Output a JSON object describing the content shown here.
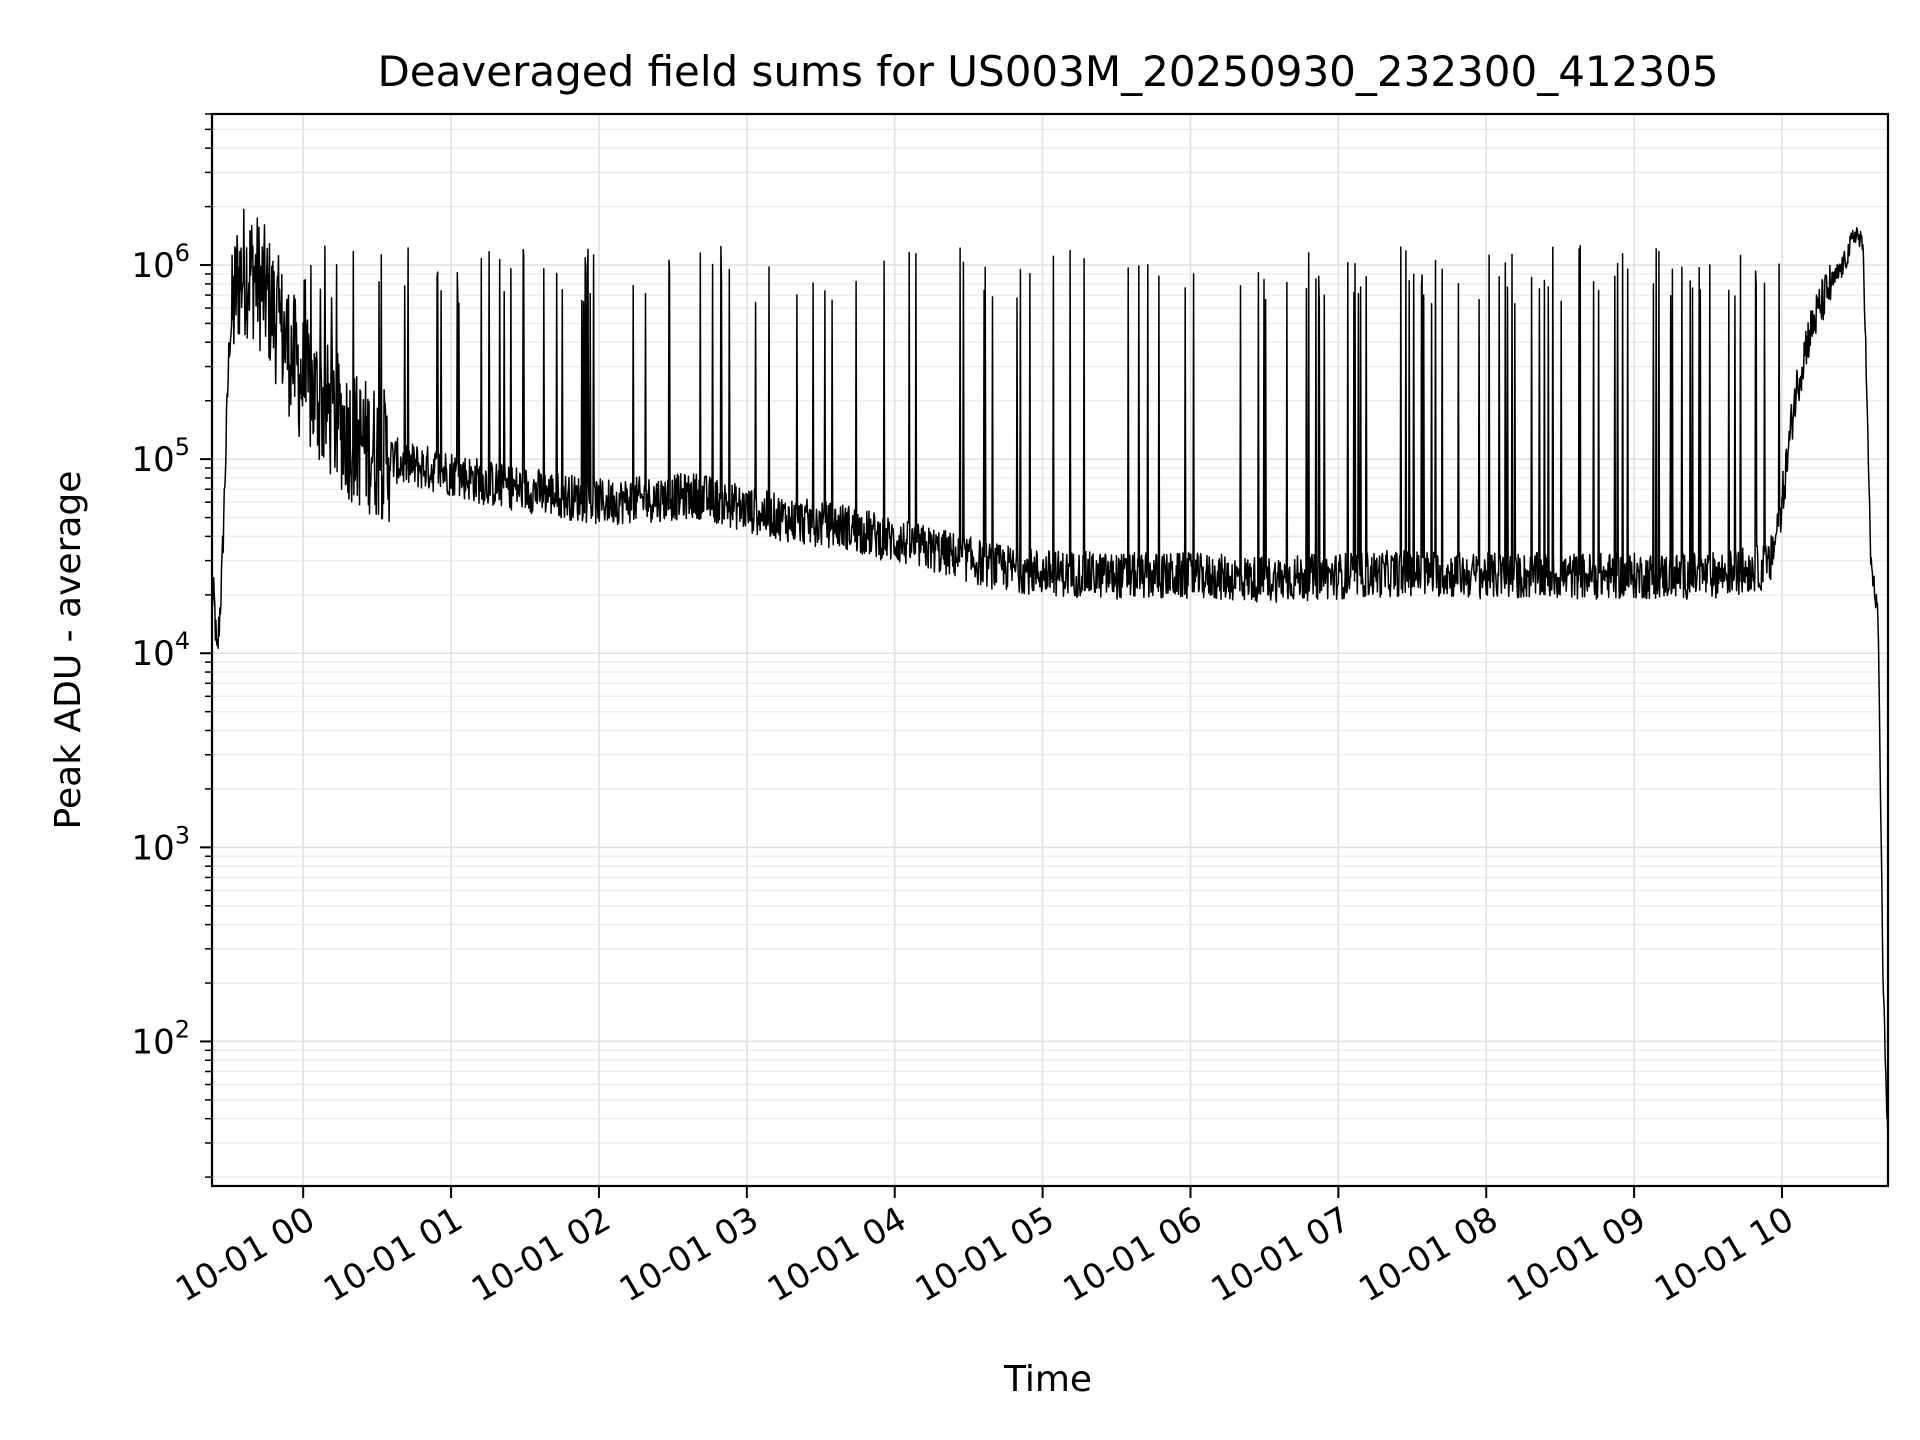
{
  "chart_data": {
    "type": "line",
    "title": "Deaveraged field sums for US003M_20250930_232300_412305",
    "xlabel": "Time",
    "ylabel": "Peak ADU - average",
    "yscale": "log",
    "ylim": [
      18,
      6000000
    ],
    "xlim": [
      "09-30 23:23",
      "10-01 10:43"
    ],
    "grid": true,
    "line_color": "#000000",
    "x_tick_labels": [
      "10-01 00",
      "10-01 01",
      "10-01 02",
      "10-01 03",
      "10-01 04",
      "10-01 05",
      "10-01 06",
      "10-01 07",
      "10-01 08",
      "10-01 09",
      "10-01 10"
    ],
    "y_ticks": [
      {
        "base": "10",
        "exp": "2",
        "value": 100
      },
      {
        "base": "10",
        "exp": "3",
        "value": 1000
      },
      {
        "base": "10",
        "exp": "4",
        "value": 10000
      },
      {
        "base": "10",
        "exp": "5",
        "value": 100000
      },
      {
        "base": "10",
        "exp": "6",
        "value": 1000000
      }
    ],
    "series": [
      {
        "x": [
          "09-30 23:23",
          "09-30 23:24",
          "09-30 23:25",
          "09-30 23:27",
          "09-30 23:30",
          "09-30 23:33",
          "09-30 23:36",
          "09-30 23:40",
          "09-30 23:45",
          "09-30 23:50",
          "09-30 23:55",
          "10-01 00:00",
          "10-01 00:10",
          "10-01 00:20",
          "10-01 00:30",
          "10-01 00:40",
          "10-01 00:50",
          "10-01 01:00",
          "10-01 01:15",
          "10-01 01:30",
          "10-01 01:45",
          "10-01 02:00",
          "10-01 02:20",
          "10-01 02:40",
          "10-01 03:00",
          "10-01 03:20",
          "10-01 03:40",
          "10-01 04:00",
          "10-01 04:20",
          "10-01 04:40",
          "10-01 05:00",
          "10-01 05:30",
          "10-01 06:00",
          "10-01 06:30",
          "10-01 07:00",
          "10-01 07:30",
          "10-01 08:00",
          "10-01 08:30",
          "10-01 09:00",
          "10-01 09:30",
          "10-01 09:55",
          "10-01 10:00",
          "10-01 10:05",
          "10-01 10:10",
          "10-01 10:15",
          "10-01 10:20",
          "10-01 10:25",
          "10-01 10:30",
          "10-01 10:33",
          "10-01 10:36",
          "10-01 10:39",
          "10-01 10:41",
          "10-01 10:43"
        ],
        "y": [
          20000,
          18000,
          9000,
          25000,
          400000,
          800000,
          950000,
          900000,
          700000,
          500000,
          350000,
          250000,
          180000,
          130000,
          110000,
          95000,
          90000,
          85000,
          75000,
          70000,
          65000,
          60000,
          62000,
          65000,
          55000,
          48000,
          45000,
          38000,
          33000,
          28000,
          26000,
          25000,
          25000,
          24000,
          25000,
          26000,
          25000,
          25000,
          25000,
          25000,
          28000,
          60000,
          200000,
          400000,
          600000,
          800000,
          1000000,
          1500000,
          1200000,
          30000,
          15000,
          200,
          30
        ]
      }
    ]
  }
}
